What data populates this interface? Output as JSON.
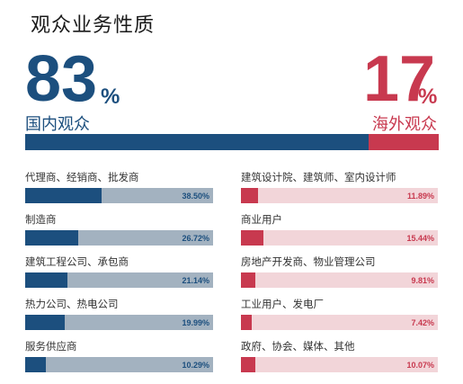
{
  "title": "观众业务性质",
  "domestic": {
    "percent": "83",
    "unit": "%",
    "label": "国内观众",
    "share": 0.83
  },
  "overseas": {
    "percent": "17",
    "unit": "%",
    "label": "海外观众",
    "share": 0.17
  },
  "colors": {
    "domestic": "#1c4f7e",
    "domestic_light": "#a3b2c0",
    "overseas": "#c8394f",
    "overseas_light": "#f2d5d9"
  },
  "chart_data": [
    {
      "type": "bar",
      "categories": [
        "国内观众",
        "海外观众"
      ],
      "values": [
        83,
        17
      ],
      "unit": "%"
    },
    {
      "type": "bar",
      "group": "国内观众",
      "categories": [
        "代理商、经销商、批发商",
        "制造商",
        "建筑工程公司、承包商",
        "热力公司、热电公司",
        "服务供应商"
      ],
      "values": [
        38.5,
        26.72,
        21.14,
        19.99,
        10.29
      ],
      "labels": [
        "38.50%",
        "26.72%",
        "21.14%",
        "19.99%",
        "10.29%"
      ]
    },
    {
      "type": "bar",
      "group": "海外观众",
      "categories": [
        "建筑设计院、建筑师、室内设计师",
        "商业用户",
        "房地产开发商、物业管理公司",
        "工业用户、发电厂",
        "政府、协会、媒体、其他"
      ],
      "values": [
        11.89,
        15.44,
        9.81,
        7.42,
        10.07
      ],
      "labels": [
        "11.89%",
        "15.44%",
        "9.81%",
        "7.42%",
        "10.07%"
      ]
    }
  ]
}
